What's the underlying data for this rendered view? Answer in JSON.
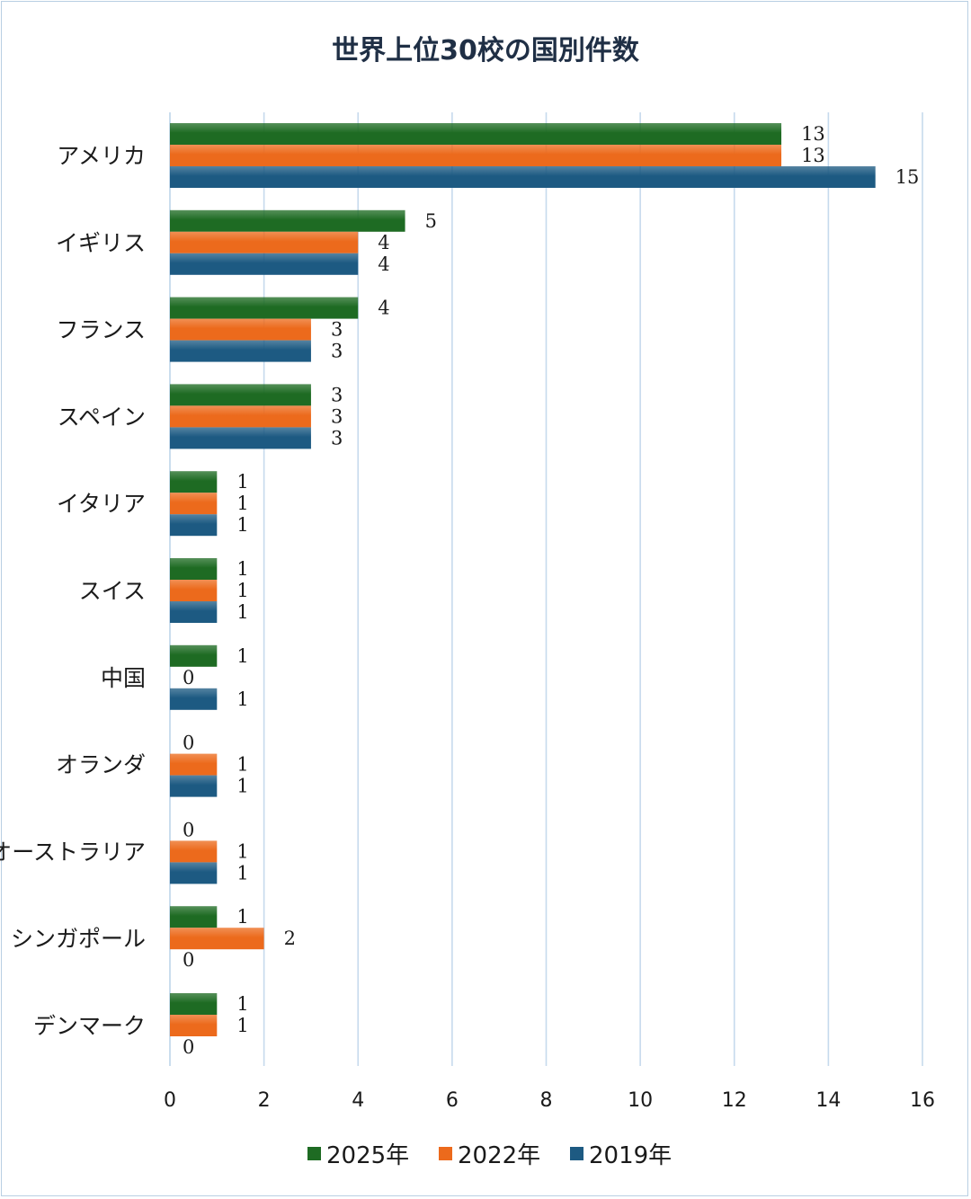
{
  "chart_data": {
    "type": "bar",
    "orientation": "horizontal",
    "title": "世界上位30校の国別件数",
    "categories": [
      "アメリカ",
      "イギリス",
      "フランス",
      "スペイン",
      "イタリア",
      "スイス",
      "中国",
      "オランダ",
      "オーストラリア",
      "シンガポール",
      "デンマーク"
    ],
    "series": [
      {
        "name": "2025年",
        "color": "#1e6b23",
        "values": [
          13,
          5,
          4,
          3,
          1,
          1,
          1,
          0,
          0,
          1,
          1
        ]
      },
      {
        "name": "2022年",
        "color": "#ec6a1c",
        "values": [
          13,
          4,
          3,
          3,
          1,
          1,
          0,
          1,
          1,
          2,
          1
        ]
      },
      {
        "name": "2019年",
        "color": "#1d5a82",
        "values": [
          15,
          4,
          3,
          3,
          1,
          1,
          1,
          1,
          1,
          0,
          0
        ]
      }
    ],
    "xlim": [
      0,
      16
    ],
    "xticks": [
      0,
      2,
      4,
      6,
      8,
      10,
      12,
      14,
      16
    ],
    "grid": "vertical",
    "legend": "bottom",
    "data_labels": true
  }
}
